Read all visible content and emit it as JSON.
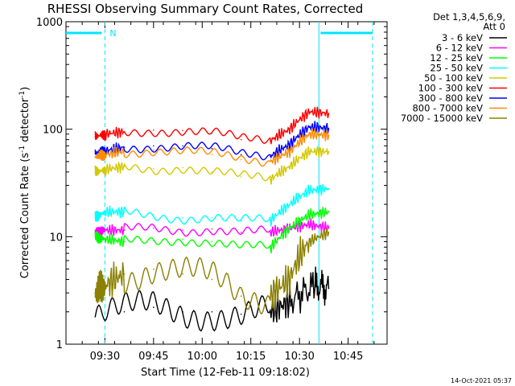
{
  "chart_data": {
    "type": "line",
    "title": "RHESSI Observing Summary Count Rates, Corrected",
    "xlabel": "Start Time (12-Feb-11 09:18:02)",
    "ylabel": "Corrected Count Rate (s",
    "ylabel_sup": "-1",
    "ylabel_tail": " detector",
    "ylabel_sup2": "-1",
    "ylabel_close": ")",
    "yscale": "log",
    "ylim": [
      1,
      1000
    ],
    "xlim_minutes": [
      9.3,
      10.95
    ],
    "y_ticks": [
      {
        "value": 1,
        "label": "1"
      },
      {
        "value": 10,
        "label": "10"
      },
      {
        "value": 100,
        "label": "100"
      },
      {
        "value": 1000,
        "label": "1000"
      }
    ],
    "x_ticks": [
      {
        "value": 9.5,
        "label": "09:30"
      },
      {
        "value": 9.75,
        "label": "09:45"
      },
      {
        "value": 10.0,
        "label": "10:00"
      },
      {
        "value": 10.25,
        "label": "10:15"
      },
      {
        "value": 10.5,
        "label": "10:30"
      },
      {
        "value": 10.75,
        "label": "10:45"
      }
    ],
    "legend_header": [
      "Det 1,3,4,5,6,9,",
      "Att 0"
    ],
    "legend_position": "right",
    "annotation_flag": "N",
    "timestamp": "14-Oct-2021 05:37",
    "series": [
      {
        "name": "3 - 6 keV",
        "color": "#000000",
        "x": [
          9.45,
          9.6,
          9.75,
          9.9,
          10.05,
          10.2,
          10.35,
          10.45,
          10.58,
          10.65
        ],
        "y": [
          1.8,
          2.0,
          2.2,
          2.0,
          2.0,
          1.9,
          2.0,
          2.5,
          3.5,
          3.3
        ]
      },
      {
        "name": "6 - 12 keV",
        "color": "#ff00ff",
        "x": [
          9.45,
          9.5,
          9.6,
          9.75,
          9.9,
          10.05,
          10.2,
          10.35,
          10.45,
          10.55,
          10.65
        ],
        "y": [
          11,
          11.5,
          11.5,
          12,
          11.5,
          11.8,
          11,
          11,
          12,
          13,
          12
        ]
      },
      {
        "name": "12 - 25 keV",
        "color": "#00ff00",
        "x": [
          9.45,
          9.5,
          9.6,
          9.75,
          9.9,
          10.05,
          10.2,
          10.35,
          10.45,
          10.55,
          10.65
        ],
        "y": [
          10,
          9.5,
          9,
          9.2,
          9.5,
          9,
          8,
          7.8,
          12,
          16,
          17
        ]
      },
      {
        "name": "25 - 50 keV",
        "color": "#00ffff",
        "x": [
          9.45,
          9.5,
          9.6,
          9.75,
          9.9,
          10.05,
          10.2,
          10.35,
          10.45,
          10.55,
          10.65
        ],
        "y": [
          15,
          17,
          17,
          16,
          15,
          15,
          14,
          14,
          20,
          27,
          28
        ]
      },
      {
        "name": "50 - 100 keV",
        "color": "#d4c800",
        "x": [
          9.45,
          9.5,
          9.6,
          9.75,
          9.9,
          10.05,
          10.2,
          10.35,
          10.45,
          10.55,
          10.65
        ],
        "y": [
          40,
          42,
          45,
          43,
          44,
          40,
          36,
          34,
          45,
          62,
          62
        ]
      },
      {
        "name": "100 - 300 keV",
        "color": "#ff0000",
        "x": [
          9.45,
          9.5,
          9.6,
          9.75,
          9.9,
          10.05,
          10.2,
          10.35,
          10.45,
          10.55,
          10.65
        ],
        "y": [
          85,
          90,
          95,
          98,
          97,
          92,
          80,
          78,
          100,
          145,
          140
        ]
      },
      {
        "name": "300 - 800 keV",
        "color": "#0000ff",
        "x": [
          9.45,
          9.5,
          9.6,
          9.75,
          9.9,
          10.05,
          10.2,
          10.35,
          10.45,
          10.55,
          10.65
        ],
        "y": [
          60,
          63,
          68,
          70,
          70,
          66,
          58,
          56,
          72,
          105,
          102
        ]
      },
      {
        "name": "800 - 7000 keV",
        "color": "#ff8c00",
        "x": [
          9.45,
          9.5,
          9.6,
          9.75,
          9.9,
          10.05,
          10.2,
          10.35,
          10.45,
          10.55,
          10.65
        ],
        "y": [
          55,
          58,
          62,
          64,
          62,
          58,
          52,
          50,
          62,
          90,
          88
        ]
      },
      {
        "name": "7000 - 15000 keV",
        "color": "#8b8000",
        "x": [
          9.45,
          9.5,
          9.6,
          9.75,
          9.9,
          10.05,
          10.2,
          10.35,
          10.45,
          10.55,
          10.65
        ],
        "y": [
          3,
          3.5,
          4.5,
          5,
          4.5,
          4,
          2.8,
          2.8,
          4,
          9,
          11
        ]
      }
    ]
  }
}
